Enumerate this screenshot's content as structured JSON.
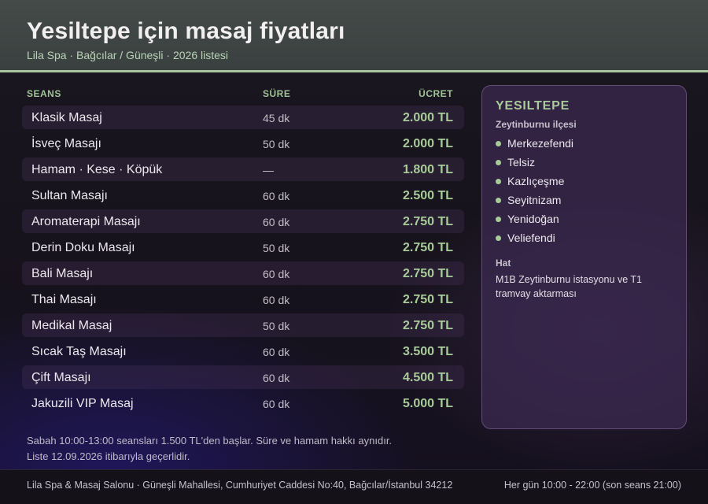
{
  "header": {
    "title": "Yesiltepe için masaj fiyatları",
    "subtitle": "Lila Spa · Bağcılar / Güneşli · 2026 listesi"
  },
  "table": {
    "columns": {
      "service": "SEANS",
      "duration": "SÜRE",
      "price": "ÜCRET"
    },
    "rows": [
      {
        "name": "Klasik Masaj",
        "duration": "45 dk",
        "price": "2.000 TL"
      },
      {
        "name": "İsveç Masajı",
        "duration": "50 dk",
        "price": "2.000 TL"
      },
      {
        "name": "Hamam · Kese · Köpük",
        "duration": "—",
        "price": "1.800 TL"
      },
      {
        "name": "Sultan Masajı",
        "duration": "60 dk",
        "price": "2.500 TL"
      },
      {
        "name": "Aromaterapi Masajı",
        "duration": "60 dk",
        "price": "2.750 TL"
      },
      {
        "name": "Derin Doku Masajı",
        "duration": "50 dk",
        "price": "2.750 TL"
      },
      {
        "name": "Bali Masajı",
        "duration": "60 dk",
        "price": "2.750 TL"
      },
      {
        "name": "Thai Masajı",
        "duration": "60 dk",
        "price": "2.750 TL"
      },
      {
        "name": "Medikal Masaj",
        "duration": "50 dk",
        "price": "2.750 TL"
      },
      {
        "name": "Sıcak Taş Masajı",
        "duration": "60 dk",
        "price": "3.500 TL"
      },
      {
        "name": "Çift Masajı",
        "duration": "60 dk",
        "price": "4.500 TL"
      },
      {
        "name": "Jakuzili VIP Masaj",
        "duration": "60 dk",
        "price": "5.000 TL"
      }
    ]
  },
  "notes": [
    "Sabah 10:00-13:00 seansları 1.500 TL'den başlar. Süre ve hamam hakkı aynıdır.",
    "Liste 12.09.2026 itibarıyla geçerlidir."
  ],
  "sidebar": {
    "title": "YESILTEPE",
    "subtitle": "Zeytinburnu ilçesi",
    "neighborhoods": [
      "Merkezefendi",
      "Telsiz",
      "Kazlıçeşme",
      "Seyitnizam",
      "Yenidoğan",
      "Veliefendi"
    ],
    "line_label": "Hat",
    "line_text": "M1B Zeytinburnu istasyonu ve T1 tramvay aktarması"
  },
  "footer": {
    "address": "Lila Spa & Masaj Salonu · Güneşli Mahallesi, Cumhuriyet Caddesi No:40, Bağcılar/İstanbul 34212",
    "hours": "Her gün 10:00 - 22:00 (son seans 21:00)"
  },
  "colors": {
    "accent_green": "#a9cb9a",
    "header_bg": "#3f4544",
    "panel_bg": "#3a284e"
  }
}
